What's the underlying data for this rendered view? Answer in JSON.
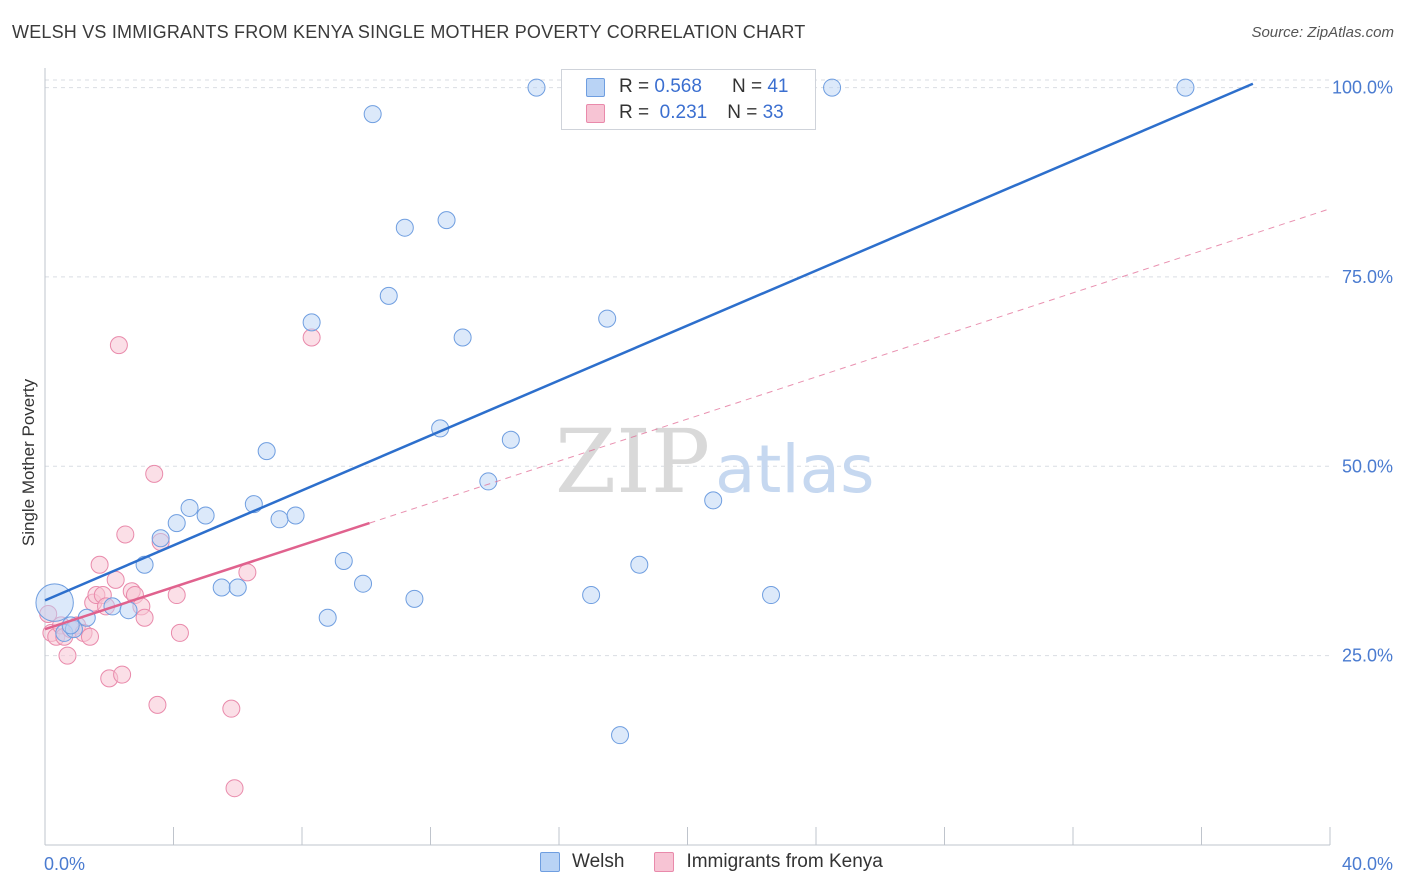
{
  "header": {
    "title": "WELSH VS IMMIGRANTS FROM KENYA SINGLE MOTHER POVERTY CORRELATION CHART",
    "source": "Source: ZipAtlas.com"
  },
  "watermark": {
    "zip": "ZIP",
    "atlas": "atlas"
  },
  "legend": {
    "rows": [
      {
        "r_label": "R =",
        "r_value": "0.568",
        "n_label": "N =",
        "n_value": "41"
      },
      {
        "r_label": "R =",
        "r_value": "0.231",
        "n_label": "N =",
        "n_value": "33"
      }
    ]
  },
  "colors": {
    "welsh_fill": "#b9d3f5",
    "welsh_stroke": "#6f9ee0",
    "welsh_line": "#2d6fcc",
    "kenya_fill": "#f7c4d4",
    "kenya_stroke": "#e98aab",
    "kenya_line": "#e0628e",
    "grid": "#d9dde3",
    "tick_label": "#4a7bd0"
  },
  "chart_data": {
    "type": "scatter",
    "title": "WELSH VS IMMIGRANTS FROM KENYA SINGLE MOTHER POVERTY CORRELATION CHART",
    "xlabel": "",
    "ylabel": "Single Mother Poverty",
    "xlim": [
      0,
      40
    ],
    "ylim": [
      0,
      101
    ],
    "x_tick_labels": [
      "0.0%",
      "40.0%"
    ],
    "y_ticks": [
      25,
      50,
      75,
      100
    ],
    "y_tick_labels": [
      "25.0%",
      "50.0%",
      "75.0%",
      "100.0%"
    ],
    "grid": "horizontal dashed",
    "legend_placement": "top-center",
    "series": [
      {
        "name": "Welsh",
        "points": [
          [
            0.3,
            32.0
          ],
          [
            0.6,
            28.0
          ],
          [
            0.9,
            28.5
          ],
          [
            1.3,
            30.0
          ],
          [
            2.1,
            31.5
          ],
          [
            2.6,
            31.0
          ],
          [
            3.1,
            37.0
          ],
          [
            3.6,
            40.5
          ],
          [
            4.1,
            42.5
          ],
          [
            4.5,
            44.5
          ],
          [
            5.0,
            43.5
          ],
          [
            5.5,
            34.0
          ],
          [
            6.0,
            34.0
          ],
          [
            6.5,
            45.0
          ],
          [
            6.9,
            52.0
          ],
          [
            7.3,
            43.0
          ],
          [
            7.8,
            43.5
          ],
          [
            8.3,
            69.0
          ],
          [
            8.8,
            30.0
          ],
          [
            9.3,
            37.5
          ],
          [
            9.9,
            34.5
          ],
          [
            10.2,
            96.5
          ],
          [
            10.7,
            72.5
          ],
          [
            11.2,
            81.5
          ],
          [
            11.5,
            32.5
          ],
          [
            12.3,
            55.0
          ],
          [
            12.5,
            82.5
          ],
          [
            13.0,
            67.0
          ],
          [
            13.8,
            48.0
          ],
          [
            14.5,
            53.5
          ],
          [
            15.3,
            100.0
          ],
          [
            17.0,
            33.0
          ],
          [
            17.5,
            69.5
          ],
          [
            17.9,
            14.5
          ],
          [
            18.5,
            37.0
          ],
          [
            19.9,
            100.0
          ],
          [
            20.8,
            45.5
          ],
          [
            22.6,
            33.0
          ],
          [
            24.5,
            100.0
          ],
          [
            35.5,
            100.0
          ],
          [
            0.8,
            29.0
          ]
        ],
        "sizes": [
          2.2,
          1,
          1,
          1,
          1,
          1,
          1,
          1,
          1,
          1,
          1,
          1,
          1,
          1,
          1,
          1,
          1,
          1,
          1,
          1,
          1,
          1,
          1,
          1,
          1,
          1,
          1,
          1,
          1,
          1,
          1,
          1,
          1,
          1,
          1,
          1,
          1,
          1,
          1,
          1,
          1
        ],
        "trend": {
          "x": [
            0,
            37.6
          ],
          "y": [
            32.3,
            100.5
          ]
        }
      },
      {
        "name": "Immigrants from Kenya",
        "points": [
          [
            0.1,
            30.5
          ],
          [
            0.2,
            28.0
          ],
          [
            0.35,
            27.5
          ],
          [
            0.5,
            29.0
          ],
          [
            0.6,
            27.5
          ],
          [
            0.7,
            25.0
          ],
          [
            0.8,
            28.5
          ],
          [
            1.0,
            29.0
          ],
          [
            1.2,
            28.0
          ],
          [
            1.4,
            27.5
          ],
          [
            1.5,
            32.0
          ],
          [
            1.6,
            33.0
          ],
          [
            1.7,
            37.0
          ],
          [
            1.8,
            33.0
          ],
          [
            1.9,
            31.5
          ],
          [
            2.0,
            22.0
          ],
          [
            2.2,
            35.0
          ],
          [
            2.4,
            22.5
          ],
          [
            2.5,
            41.0
          ],
          [
            2.7,
            33.5
          ],
          [
            2.8,
            33.0
          ],
          [
            3.0,
            31.5
          ],
          [
            3.1,
            30.0
          ],
          [
            3.4,
            49.0
          ],
          [
            3.5,
            18.5
          ],
          [
            3.6,
            40.0
          ],
          [
            4.1,
            33.0
          ],
          [
            4.2,
            28.0
          ],
          [
            5.8,
            18.0
          ],
          [
            5.9,
            7.5
          ],
          [
            6.3,
            36.0
          ],
          [
            8.3,
            67.0
          ],
          [
            2.3,
            66.0
          ]
        ],
        "trend_solid": {
          "x": [
            0,
            10.1
          ],
          "y": [
            28.5,
            42.5
          ]
        },
        "trend_dashed": {
          "x": [
            10.1,
            40
          ],
          "y": [
            42.5,
            84.0
          ]
        }
      }
    ]
  }
}
